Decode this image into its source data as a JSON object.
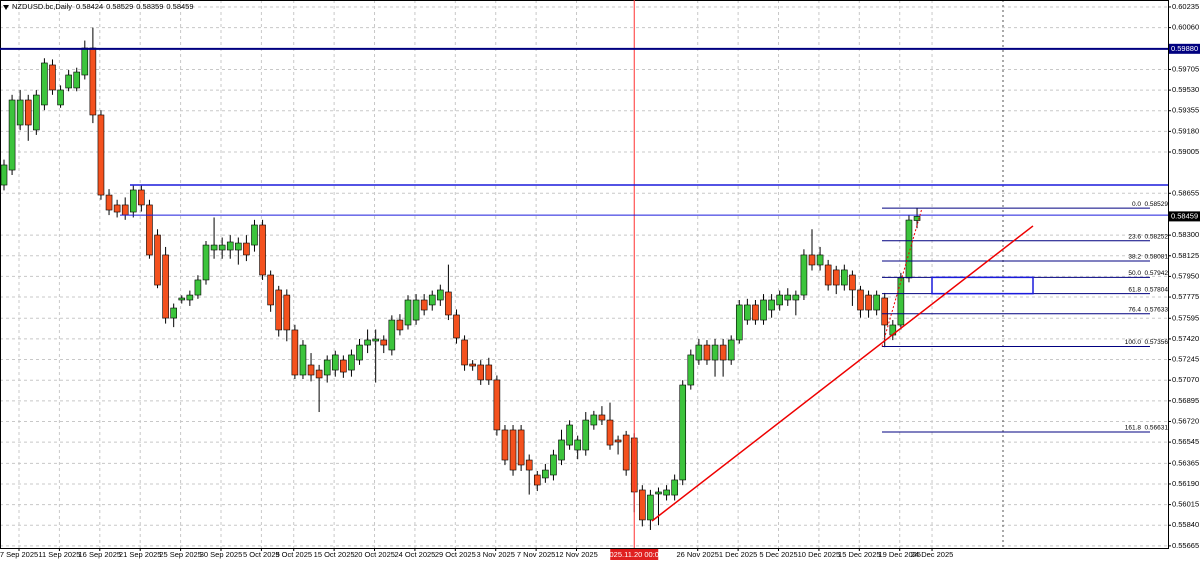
{
  "chart_data": {
    "type": "candlestick",
    "title": "NZDUSD.bc,Daily",
    "up_color": "#3cc43c",
    "down_color": "#f4511e",
    "grid": true,
    "ylim": [
      0.55647,
      0.60294
    ],
    "yticks": [
      {
        "value": 0.60235,
        "label": "0.60235"
      },
      {
        "value": 0.6006,
        "label": "0.60060"
      },
      {
        "value": 0.59705,
        "label": "0.59705"
      },
      {
        "value": 0.5953,
        "label": "0.59530"
      },
      {
        "value": 0.59355,
        "label": "0.59355"
      },
      {
        "value": 0.5918,
        "label": "0.59180"
      },
      {
        "value": 0.59005,
        "label": "0.59005"
      },
      {
        "value": 0.58655,
        "label": "0.58655"
      },
      {
        "value": 0.583,
        "label": "0.58300"
      },
      {
        "value": 0.58125,
        "label": "0.58125"
      },
      {
        "value": 0.5795,
        "label": "0.57950"
      },
      {
        "value": 0.57775,
        "label": "0.57775"
      },
      {
        "value": 0.57595,
        "label": "0.57595"
      },
      {
        "value": 0.5742,
        "label": "0.57420"
      },
      {
        "value": 0.57245,
        "label": "0.57245"
      },
      {
        "value": 0.5707,
        "label": "0.57070"
      },
      {
        "value": 0.56895,
        "label": "0.56895"
      },
      {
        "value": 0.5672,
        "label": "0.56720"
      },
      {
        "value": 0.56545,
        "label": "0.56545"
      },
      {
        "value": 0.56365,
        "label": "0.56365"
      },
      {
        "value": 0.5619,
        "label": "0.56190"
      },
      {
        "value": 0.56015,
        "label": "0.56015"
      },
      {
        "value": 0.5584,
        "label": "0.55840"
      },
      {
        "value": 0.55665,
        "label": "0.55665"
      }
    ],
    "categories": [
      "7 Sep 2025",
      null,
      null,
      null,
      null,
      "11 Sep 2025",
      null,
      null,
      null,
      null,
      "16 Sep 2025",
      null,
      null,
      null,
      null,
      "21 Sep 2025",
      null,
      null,
      null,
      null,
      "25 Sep 2025",
      null,
      null,
      null,
      null,
      "30 Sep 2025",
      null,
      null,
      null,
      null,
      "5 Oct 2025",
      null,
      null,
      null,
      "9 Oct 2025",
      null,
      null,
      null,
      null,
      "15 Oct 2025",
      null,
      null,
      null,
      null,
      "20 Oct 2025",
      null,
      null,
      null,
      null,
      "24 Oct 2025",
      null,
      null,
      null,
      null,
      "29 Oct 2025",
      null,
      null,
      null,
      null,
      "3 Nov 2025",
      null,
      null,
      null,
      null,
      "7 Nov 2025",
      null,
      null,
      null,
      null,
      "12 Nov 2025",
      null,
      null,
      null,
      null,
      null,
      null,
      null,
      null,
      "2025.11.20 00:00",
      null,
      null,
      null,
      null,
      null,
      "26 Nov 2025",
      null,
      null,
      null,
      null,
      "1 Dec 2025",
      null,
      null,
      null,
      null,
      "5 Dec 2025",
      null,
      null,
      null,
      null,
      "10 Dec 2025",
      null,
      null,
      null,
      null,
      "15 Dec 2025",
      null,
      null,
      null,
      null,
      "19 Dec 2025",
      null,
      null,
      null,
      "24 Dec 2025"
    ],
    "candles": [
      [
        0.58725,
        0.5894,
        0.5868,
        0.58895
      ],
      [
        0.58852,
        0.5949,
        0.5881,
        0.59446
      ],
      [
        0.59234,
        0.5953,
        0.5919,
        0.59446
      ],
      [
        0.59446,
        0.5949,
        0.591,
        0.59234
      ],
      [
        0.59192,
        0.5953,
        0.5915,
        0.59488
      ],
      [
        0.59404,
        0.598,
        0.5936,
        0.5976
      ],
      [
        0.59743,
        0.5979,
        0.5949,
        0.59531
      ],
      [
        0.59404,
        0.5957,
        0.5938,
        0.59531
      ],
      [
        0.59548,
        0.597,
        0.5952,
        0.59658
      ],
      [
        0.59548,
        0.5972,
        0.5952,
        0.59683
      ],
      [
        0.59658,
        0.5995,
        0.5962,
        0.59887
      ],
      [
        0.59887,
        0.6006,
        0.5925,
        0.59319
      ],
      [
        0.59319,
        0.5936,
        0.586,
        0.5864
      ],
      [
        0.5864,
        0.5869,
        0.5847,
        0.58513
      ],
      [
        0.58556,
        0.586,
        0.5845,
        0.58496
      ],
      [
        0.58556,
        0.5862,
        0.5843,
        0.58471
      ],
      [
        0.58496,
        0.5872,
        0.5845,
        0.58683
      ],
      [
        0.58683,
        0.5872,
        0.585,
        0.58556
      ],
      [
        0.58556,
        0.586,
        0.581,
        0.58132
      ],
      [
        0.58301,
        0.5835,
        0.5785,
        0.57877
      ],
      [
        0.58132,
        0.582,
        0.5755,
        0.57597
      ],
      [
        0.57597,
        0.5772,
        0.5752,
        0.57682
      ],
      [
        0.5775,
        0.5779,
        0.5772,
        0.57767
      ],
      [
        0.5775,
        0.5783,
        0.577,
        0.57792
      ],
      [
        0.57792,
        0.5796,
        0.5776,
        0.5792
      ],
      [
        0.5792,
        0.5825,
        0.5788,
        0.58216
      ],
      [
        0.58174,
        0.5845,
        0.581,
        0.58216
      ],
      [
        0.58174,
        0.5828,
        0.581,
        0.58216
      ],
      [
        0.58174,
        0.583,
        0.581,
        0.58242
      ],
      [
        0.58174,
        0.5828,
        0.5805,
        0.58233
      ],
      [
        0.58233,
        0.583,
        0.5808,
        0.58132
      ],
      [
        0.58216,
        0.5843,
        0.5816,
        0.58386
      ],
      [
        0.58386,
        0.5843,
        0.5792,
        0.57962
      ],
      [
        0.57962,
        0.58,
        0.5765,
        0.57708
      ],
      [
        0.57835,
        0.5787,
        0.5744,
        0.57496
      ],
      [
        0.57792,
        0.5784,
        0.574,
        0.57496
      ],
      [
        0.57496,
        0.5754,
        0.5708,
        0.57114
      ],
      [
        0.57114,
        0.5741,
        0.5708,
        0.57368
      ],
      [
        0.57199,
        0.573,
        0.5706,
        0.57114
      ],
      [
        0.57156,
        0.572,
        0.568,
        0.57089
      ],
      [
        0.57114,
        0.5728,
        0.5705,
        0.57241
      ],
      [
        0.57156,
        0.5732,
        0.571,
        0.57284
      ],
      [
        0.57241,
        0.5728,
        0.5709,
        0.57139
      ],
      [
        0.57156,
        0.5733,
        0.571,
        0.57284
      ],
      [
        0.57241,
        0.5742,
        0.572,
        0.57368
      ],
      [
        0.57368,
        0.575,
        0.573,
        0.57411
      ],
      [
        0.57402,
        0.575,
        0.5705,
        0.57419
      ],
      [
        0.57411,
        0.5745,
        0.573,
        0.57368
      ],
      [
        0.57326,
        0.5762,
        0.5728,
        0.5758
      ],
      [
        0.5758,
        0.5763,
        0.5745,
        0.57496
      ],
      [
        0.57538,
        0.5779,
        0.575,
        0.5775
      ],
      [
        0.5758,
        0.578,
        0.5754,
        0.5775
      ],
      [
        0.5775,
        0.578,
        0.5762,
        0.57665
      ],
      [
        0.57708,
        0.5783,
        0.5766,
        0.57792
      ],
      [
        0.5775,
        0.5788,
        0.577,
        0.57835
      ],
      [
        0.57818,
        0.5805,
        0.5758,
        0.57623
      ],
      [
        0.57623,
        0.5767,
        0.5738,
        0.57428
      ],
      [
        0.57411,
        0.5745,
        0.5715,
        0.57199
      ],
      [
        0.57207,
        0.5724,
        0.5715,
        0.5719
      ],
      [
        0.57199,
        0.5724,
        0.5703,
        0.57072
      ],
      [
        0.57199,
        0.5726,
        0.5703,
        0.57072
      ],
      [
        0.57072,
        0.5711,
        0.566,
        0.56648
      ],
      [
        0.56648,
        0.5669,
        0.5635,
        0.56393
      ],
      [
        0.56648,
        0.5669,
        0.5626,
        0.56308
      ],
      [
        0.56648,
        0.5669,
        0.563,
        0.56351
      ],
      [
        0.56393,
        0.5644,
        0.561,
        0.56308
      ],
      [
        0.56266,
        0.563,
        0.5613,
        0.56181
      ],
      [
        0.56241,
        0.5636,
        0.562,
        0.56308
      ],
      [
        0.56266,
        0.5648,
        0.5622,
        0.56436
      ],
      [
        0.56393,
        0.5665,
        0.5635,
        0.56563
      ],
      [
        0.5652,
        0.5673,
        0.5648,
        0.5669
      ],
      [
        0.56478,
        0.566,
        0.564,
        0.56563
      ],
      [
        0.56478,
        0.568,
        0.5643,
        0.56732
      ],
      [
        0.5669,
        0.5681,
        0.5665,
        0.56775
      ],
      [
        0.56775,
        0.5685,
        0.5669,
        0.56732
      ],
      [
        0.56732,
        0.5688,
        0.5648,
        0.5652
      ],
      [
        0.56563,
        0.566,
        0.5644,
        0.56546
      ],
      [
        0.56605,
        0.5664,
        0.5626,
        0.56308
      ],
      [
        0.5658,
        0.5662,
        0.5595,
        0.56122
      ],
      [
        0.56139,
        0.5618,
        0.5583,
        0.55885
      ],
      [
        0.55885,
        0.5614,
        0.558,
        0.56096
      ],
      [
        0.56105,
        0.5616,
        0.5584,
        0.56122
      ],
      [
        0.56096,
        0.5618,
        0.5605,
        0.56139
      ],
      [
        0.56096,
        0.5627,
        0.5605,
        0.56224
      ],
      [
        0.56224,
        0.5707,
        0.5618,
        0.57029
      ],
      [
        0.57029,
        0.5733,
        0.5699,
        0.57284
      ],
      [
        0.57241,
        0.5742,
        0.572,
        0.57368
      ],
      [
        0.57368,
        0.5741,
        0.572,
        0.57241
      ],
      [
        0.57241,
        0.5742,
        0.571,
        0.57368
      ],
      [
        0.57368,
        0.5742,
        0.571,
        0.57241
      ],
      [
        0.57241,
        0.5745,
        0.572,
        0.57411
      ],
      [
        0.57411,
        0.5775,
        0.5738,
        0.57708
      ],
      [
        0.5758,
        0.5776,
        0.5754,
        0.57708
      ],
      [
        0.57708,
        0.5775,
        0.5754,
        0.5758
      ],
      [
        0.5758,
        0.578,
        0.5754,
        0.5775
      ],
      [
        0.57665,
        0.578,
        0.576,
        0.5775
      ],
      [
        0.57708,
        0.5783,
        0.5766,
        0.57792
      ],
      [
        0.5775,
        0.5785,
        0.577,
        0.57792
      ],
      [
        0.5775,
        0.5783,
        0.5762,
        0.57792
      ],
      [
        0.57792,
        0.5818,
        0.5775,
        0.58132
      ],
      [
        0.58132,
        0.5835,
        0.58,
        0.58047
      ],
      [
        0.58047,
        0.582,
        0.58,
        0.58132
      ],
      [
        0.58047,
        0.5809,
        0.5783,
        0.57877
      ],
      [
        0.58005,
        0.5804,
        0.578,
        0.57877
      ],
      [
        0.57877,
        0.5805,
        0.5783,
        0.58005
      ],
      [
        0.57962,
        0.58,
        0.577,
        0.57835
      ],
      [
        0.57835,
        0.5787,
        0.576,
        0.57665
      ],
      [
        0.57792,
        0.5783,
        0.576,
        0.57665
      ],
      [
        0.57665,
        0.5783,
        0.5762,
        0.57792
      ],
      [
        0.57767,
        0.5781,
        0.5735,
        0.57538
      ],
      [
        0.57453,
        0.5758,
        0.5741,
        0.57538
      ],
      [
        0.57538,
        0.5798,
        0.575,
        0.57937
      ],
      [
        0.57937,
        0.5847,
        0.579,
        0.58428
      ],
      [
        0.58424,
        0.58529,
        0.58359,
        0.58459
      ]
    ],
    "hlines": [
      {
        "value": 0.5988,
        "label": "0.59880"
      },
      {
        "value": 0.58725
      },
      {
        "value": 0.5847
      }
    ],
    "trendline": [
      0.55876,
      0.58378
    ],
    "fibo": [
      {
        "level": {
          "value": 0,
          "label": "0.0"
        },
        "price": 0.58529
      },
      {
        "level": 23.6,
        "price": 0.58252
      },
      {
        "level": 38.2,
        "price": 0.58081
      },
      {
        "level": {
          "value": 50,
          "label": "50.0"
        },
        "price": 0.57942
      },
      {
        "level": 61.8,
        "price": 0.57804
      },
      {
        "level": 76.4,
        "price": 0.57633
      },
      {
        "level": {
          "value": 100,
          "label": "100.0"
        },
        "price": 0.57356
      },
      {
        "level": 161.8,
        "price": 0.56631
      }
    ]
  }
}
